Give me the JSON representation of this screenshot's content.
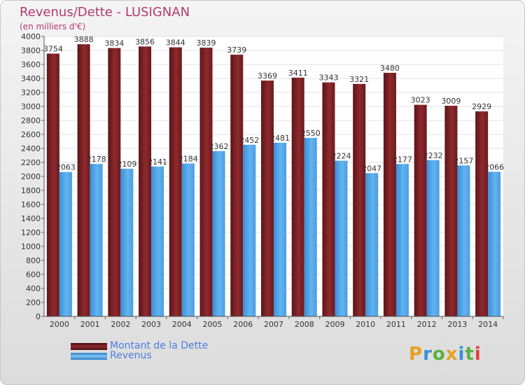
{
  "header": {
    "title": "Revenus/Dette - LUSIGNAN",
    "subtitle": "(en milliers d'€)"
  },
  "legend": {
    "items": [
      {
        "label": "Montant de la Dette",
        "color": "#7a1e22"
      },
      {
        "label": "Revenus",
        "color": "#4aa3e8"
      }
    ]
  },
  "logo": {
    "letters": [
      "P",
      "r",
      "o",
      "x",
      "i",
      "t",
      "i"
    ],
    "colors": [
      "#e8a020",
      "#3a8fd8",
      "#5ab040",
      "#e8a020",
      "#3a8fd8",
      "#5ab040",
      "#e04040"
    ]
  },
  "chart_data": {
    "type": "bar",
    "categories": [
      "2000",
      "2001",
      "2002",
      "2003",
      "2004",
      "2005",
      "2006",
      "2007",
      "2008",
      "2009",
      "2010",
      "2011",
      "2012",
      "2013",
      "2014"
    ],
    "series": [
      {
        "name": "Montant de la Dette",
        "values": [
          3754,
          3888,
          3834,
          3856,
          3844,
          3839,
          3739,
          3369,
          3411,
          3343,
          3321,
          3480,
          3023,
          3009,
          2929
        ],
        "color": "#7a1e22"
      },
      {
        "name": "Revenus",
        "values": [
          2063,
          2178,
          2109,
          2141,
          2184,
          2362,
          2452,
          2481,
          2550,
          2224,
          2047,
          2177,
          2232,
          2157,
          2066
        ],
        "color": "#4aa3e8"
      }
    ],
    "yticks": [
      0,
      200,
      400,
      600,
      800,
      1000,
      1200,
      1400,
      1600,
      1800,
      2000,
      2200,
      2400,
      2600,
      2800,
      3000,
      3200,
      3400,
      3600,
      3800,
      4000
    ],
    "ylim": [
      0,
      4000
    ],
    "grid": true
  }
}
